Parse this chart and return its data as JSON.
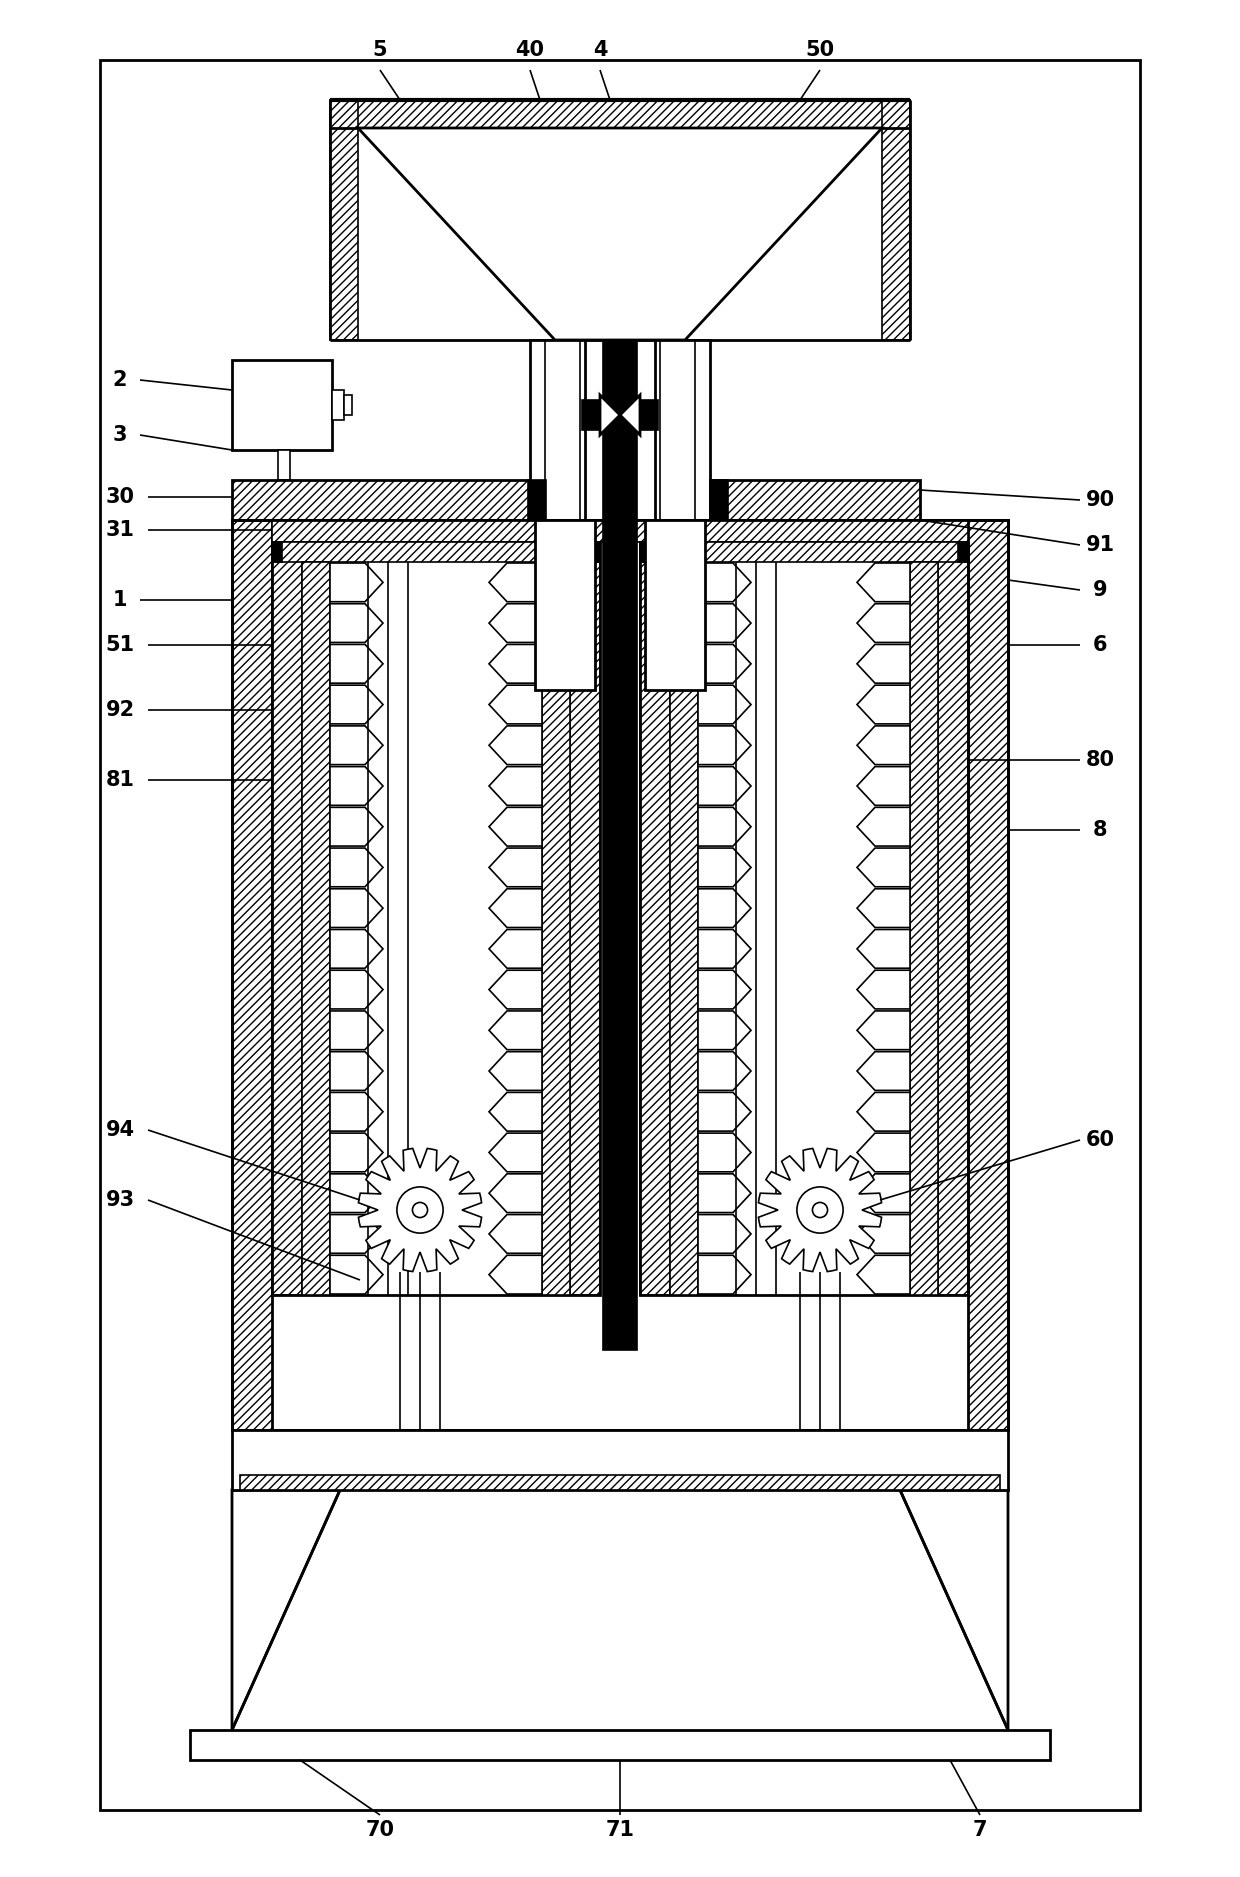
{
  "bg_color": "#ffffff",
  "lc": "#000000",
  "fig_width": 12.4,
  "fig_height": 18.77,
  "dpi": 100
}
